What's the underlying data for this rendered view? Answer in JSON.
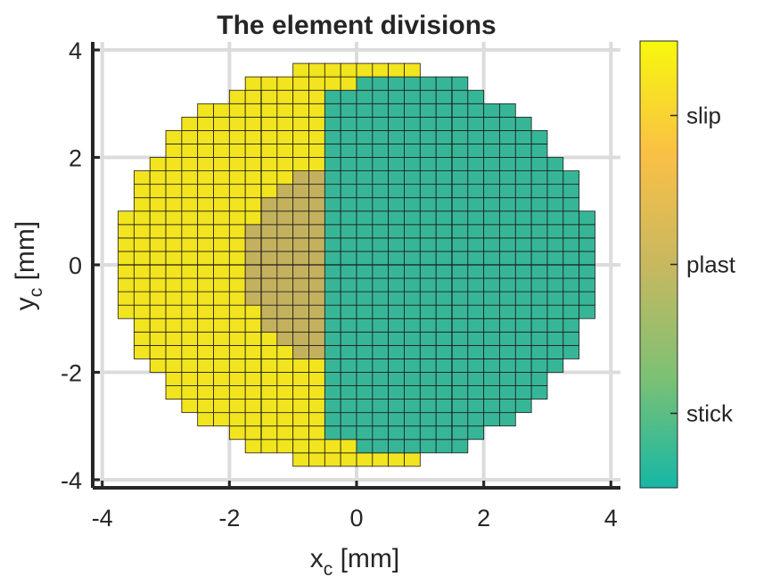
{
  "chart_data": {
    "type": "heatmap",
    "title": "The element divisions",
    "xlabel": {
      "base": "x",
      "sub": "c",
      "unit": " [mm]"
    },
    "ylabel": {
      "base": "y",
      "sub": "c",
      "unit": " [mm]"
    },
    "xlim": [
      -4.15,
      4.15
    ],
    "ylim": [
      -4.15,
      4.15
    ],
    "xticks": [
      -4,
      -2,
      0,
      2,
      4
    ],
    "yticks": [
      -4,
      -2,
      0,
      2,
      4
    ],
    "x_tick_labels": [
      "-4",
      "-2",
      "0",
      "2",
      "4"
    ],
    "y_tick_labels": [
      "-4",
      "-2",
      "0",
      "2",
      "4"
    ],
    "grid": true,
    "cell_size_mm": 0.25,
    "domain_radius_mm": 3.75,
    "stick_region_center_x_mm": 1.05,
    "stick_region_radius_mm": 3.5,
    "plast_region_center_x_mm": 0.2,
    "plast_region_radius_mm": 2.0,
    "categories": [
      "stick",
      "plast",
      "slip"
    ],
    "category_colors": {
      "slip": "#f2e41e",
      "plast": "#c4b15e",
      "stick": "#37b697"
    },
    "colorbar": {
      "ticks": [
        "slip",
        "plast",
        "stick"
      ],
      "gradient": [
        "#f7f80d",
        "#fac045",
        "#c8b860",
        "#7dc173",
        "#16b7a6"
      ]
    }
  }
}
